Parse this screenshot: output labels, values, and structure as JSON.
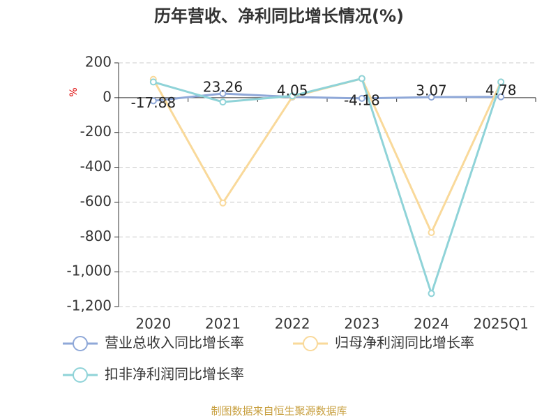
{
  "chart_data": {
    "type": "line",
    "title": "历年营收、净利同比增长情况(%)",
    "y_unit": "%",
    "categories": [
      "2020",
      "2021",
      "2022",
      "2023",
      "2024",
      "2025Q1"
    ],
    "series": [
      {
        "name": "营业总收入同比增长率",
        "color": "#8fa8d8",
        "values": [
          -17.88,
          23.26,
          4.05,
          -4.18,
          3.07,
          4.78
        ],
        "show_labels": true
      },
      {
        "name": "归母净利润同比增长率",
        "color": "#f9d99a",
        "values": [
          105,
          -605,
          5,
          110,
          -775,
          90
        ]
      },
      {
        "name": "扣非净利润同比增长率",
        "color": "#8fd3d8",
        "values": [
          90,
          -25,
          10,
          110,
          -1125,
          90
        ]
      }
    ],
    "ylim": [
      -1200,
      200
    ],
    "yticks": [
      200,
      0,
      -200,
      -400,
      -600,
      -800,
      {
        "value": -1000,
        "label": "-1,000"
      },
      {
        "value": -1200,
        "label": "-1,200"
      }
    ],
    "grid": true,
    "source": "制图数据来自恒生聚源数据库"
  }
}
